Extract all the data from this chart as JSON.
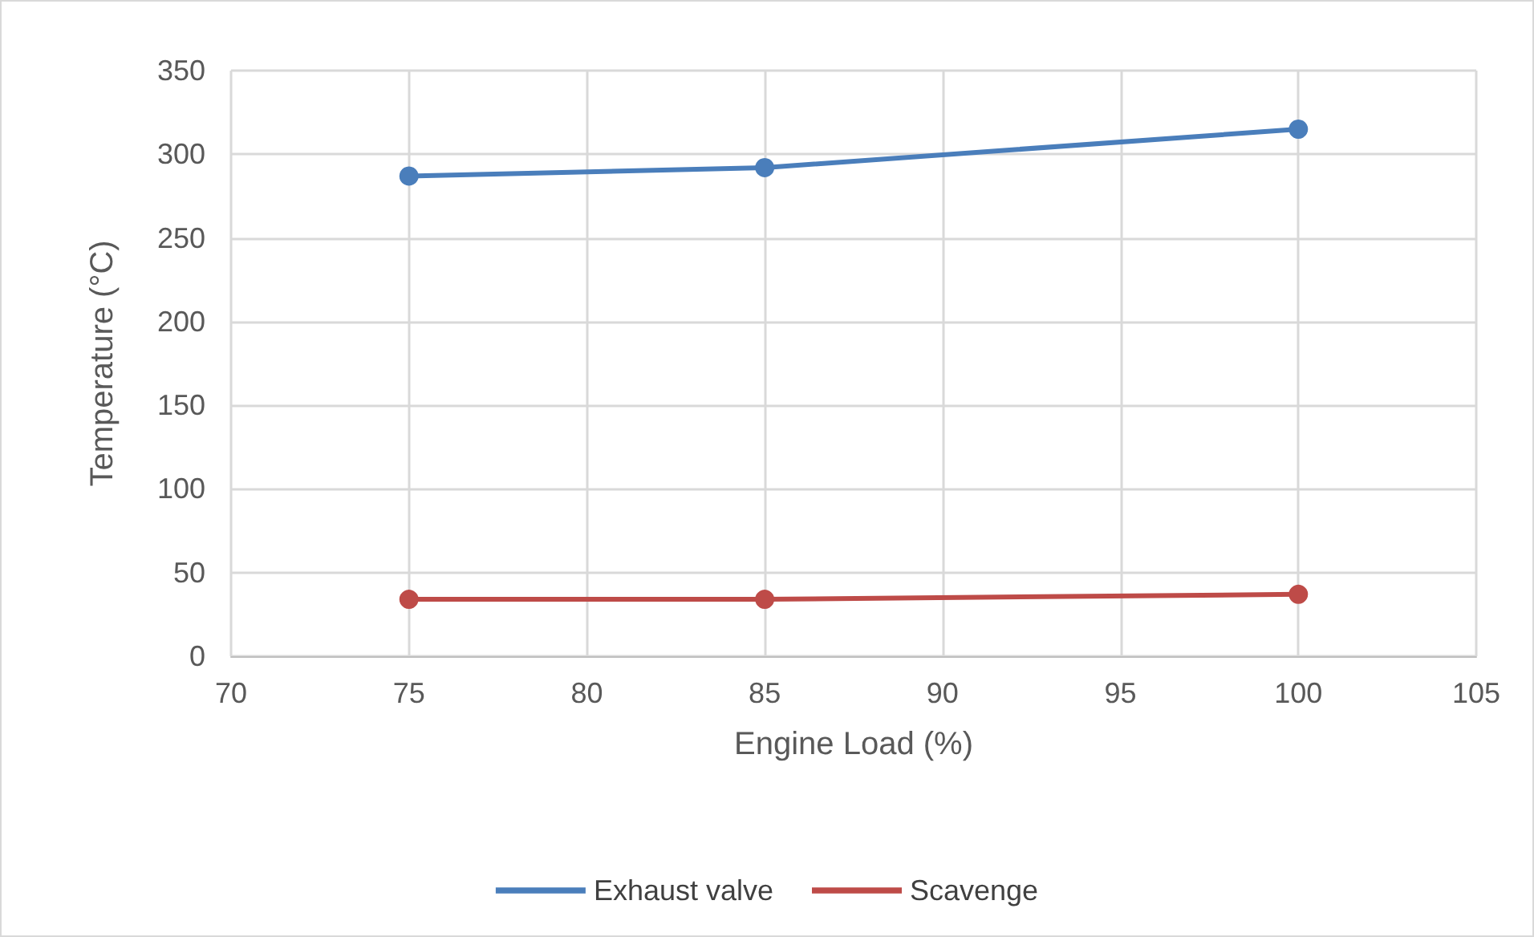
{
  "chart_data": {
    "type": "line",
    "xlabel": "Engine Load (%)",
    "ylabel": "Temperature (°C)",
    "x": [
      75,
      85,
      100
    ],
    "series": [
      {
        "name": "Exhaust valve",
        "color": "#4a7ebb",
        "values": [
          287,
          292,
          315
        ]
      },
      {
        "name": "Scavenge",
        "color": "#be4b48",
        "values": [
          34,
          34,
          37
        ]
      }
    ],
    "xlim": [
      70,
      105
    ],
    "xticks": [
      70,
      75,
      80,
      85,
      90,
      95,
      100,
      105
    ],
    "ylim": [
      0,
      350
    ],
    "yticks": [
      0,
      50,
      100,
      150,
      200,
      250,
      300,
      350
    ],
    "grid": true,
    "legend": "bottom",
    "marker": "circle",
    "line_style": "solid"
  }
}
